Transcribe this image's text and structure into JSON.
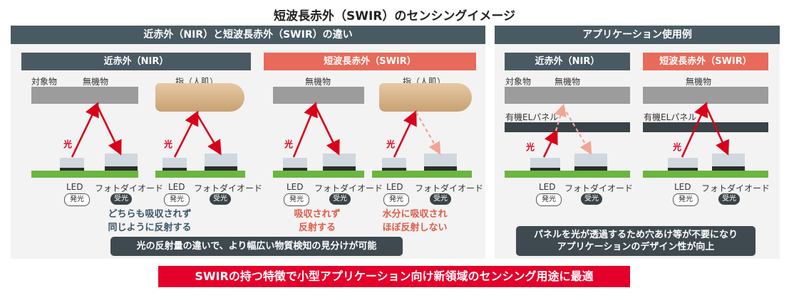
{
  "title": "短波長赤外（SWIR）のセンシングイメージ",
  "left_panel": {
    "header": "近赤外（NIR）と短波長赤外（SWIR）の違い",
    "nir": {
      "header": "近赤外（NIR）",
      "obj_label": "対象物",
      "inorganic": "無機物",
      "finger": "指（人肌）",
      "light": "光",
      "led": "LED",
      "photodiode": "フォトダイオード",
      "emit": "発光",
      "receive": "受光",
      "summary_lines": [
        "どちらも吸収されず",
        "同じように反射する"
      ]
    },
    "swir": {
      "header": "短波長赤外（SWIR）",
      "inorganic": "無機物",
      "finger": "指（人肌）",
      "light": "光",
      "led": "LED",
      "photodiode": "フォトダイオード",
      "emit": "発光",
      "receive": "受光",
      "inorganic_lines": [
        "吸収されず",
        "反射する"
      ],
      "finger_lines": [
        "水分に吸収され",
        "ほぼ反射しない"
      ]
    },
    "callout": "光の反射量の違いで、より幅広い物質検知の見分けが可能"
  },
  "right_panel": {
    "header": "アプリケーション使用例",
    "nir": {
      "header": "近赤外（NIR）",
      "obj_label": "対象物",
      "inorganic": "無機物",
      "panel_label": "有機ELパネル",
      "light": "光",
      "led": "LED",
      "photodiode": "フォトダイオード",
      "emit": "発光",
      "receive": "受光"
    },
    "swir": {
      "header": "短波長赤外（SWIR）",
      "inorganic": "無機物",
      "panel_label": "有機ELパネル",
      "light": "光",
      "led": "LED",
      "photodiode": "フォトダイオード",
      "emit": "発光",
      "receive": "受光"
    },
    "callout_lines": [
      "パネルを光が透過するため穴あけ等が不要になり",
      "アプリケーションのデザイン性が向上"
    ]
  },
  "bottom_banner": "SWIRの持つ特徴で小型アプリケーション向け新領域のセンシング用途に最適",
  "colors": {
    "dark_header": "#4a5a62",
    "swir_header": "#e86a5a",
    "light_red": "#e0001b",
    "banner": "#e4002b",
    "board": "#6ab640"
  }
}
